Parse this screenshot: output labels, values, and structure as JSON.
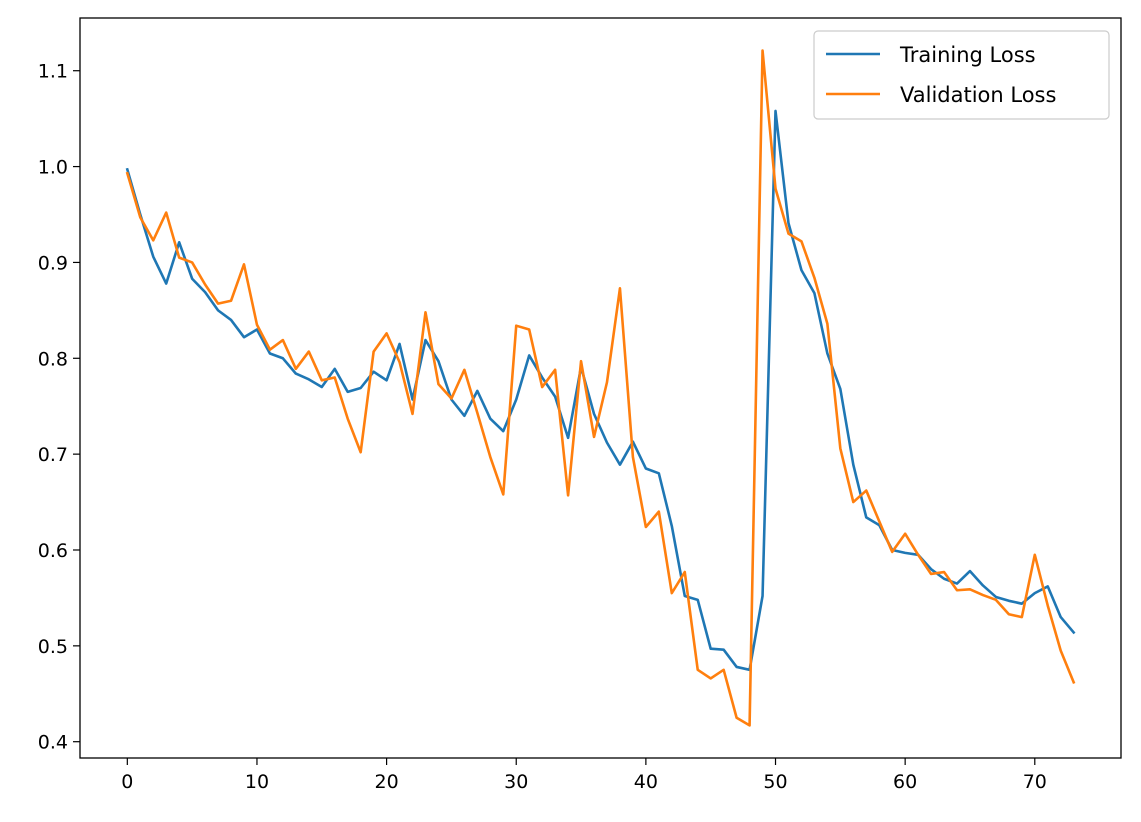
{
  "chart_data": {
    "type": "line",
    "title": "",
    "xlabel": "",
    "ylabel": "",
    "xlim": [
      -3.65,
      76.65
    ],
    "ylim": [
      0.383,
      1.155
    ],
    "xticks": [
      0,
      10,
      20,
      30,
      40,
      50,
      60,
      70
    ],
    "yticks": [
      0.4,
      0.5,
      0.6,
      0.7,
      0.8,
      0.9,
      1.0,
      1.1
    ],
    "grid": false,
    "legend_position": "top-right",
    "series": [
      {
        "name": "Training Loss",
        "color": "#1f77b4",
        "x": [
          0,
          1,
          2,
          3,
          4,
          5,
          6,
          7,
          8,
          9,
          10,
          11,
          12,
          13,
          14,
          15,
          16,
          17,
          18,
          19,
          20,
          21,
          22,
          23,
          24,
          25,
          26,
          27,
          28,
          29,
          30,
          31,
          32,
          33,
          34,
          35,
          36,
          37,
          38,
          39,
          40,
          41,
          42,
          43,
          44,
          45,
          46,
          47,
          48,
          49,
          50,
          51,
          52,
          53,
          54,
          55,
          56,
          57,
          58,
          59,
          60,
          61,
          62,
          63,
          64,
          65,
          66,
          67,
          68,
          69,
          70,
          71,
          72,
          73
        ],
        "values": [
          0.997,
          0.95,
          0.906,
          0.878,
          0.921,
          0.883,
          0.869,
          0.85,
          0.84,
          0.822,
          0.83,
          0.805,
          0.8,
          0.784,
          0.778,
          0.77,
          0.789,
          0.765,
          0.769,
          0.786,
          0.777,
          0.815,
          0.757,
          0.819,
          0.797,
          0.757,
          0.74,
          0.766,
          0.737,
          0.724,
          0.757,
          0.803,
          0.78,
          0.76,
          0.717,
          0.791,
          0.742,
          0.712,
          0.689,
          0.713,
          0.685,
          0.68,
          0.625,
          0.552,
          0.548,
          0.497,
          0.496,
          0.478,
          0.475,
          0.552,
          1.058,
          0.941,
          0.892,
          0.868,
          0.805,
          0.768,
          0.689,
          0.634,
          0.626,
          0.6,
          0.597,
          0.595,
          0.58,
          0.57,
          0.565,
          0.578,
          0.563,
          0.551,
          0.547,
          0.544,
          0.555,
          0.562,
          0.53,
          0.514
        ]
      },
      {
        "name": "Validation Loss",
        "color": "#ff7f0e",
        "x": [
          0,
          1,
          2,
          3,
          4,
          5,
          6,
          7,
          8,
          9,
          10,
          11,
          12,
          13,
          14,
          15,
          16,
          17,
          18,
          19,
          20,
          21,
          22,
          23,
          24,
          25,
          26,
          27,
          28,
          29,
          30,
          31,
          32,
          33,
          34,
          35,
          36,
          37,
          38,
          39,
          40,
          41,
          42,
          43,
          44,
          45,
          46,
          47,
          48,
          49,
          50,
          51,
          52,
          53,
          54,
          55,
          56,
          57,
          58,
          59,
          60,
          61,
          62,
          63,
          64,
          65,
          66,
          67,
          68,
          69,
          70,
          71,
          72,
          73
        ],
        "values": [
          0.993,
          0.947,
          0.923,
          0.952,
          0.905,
          0.9,
          0.877,
          0.857,
          0.86,
          0.898,
          0.835,
          0.809,
          0.819,
          0.789,
          0.807,
          0.777,
          0.78,
          0.737,
          0.702,
          0.807,
          0.826,
          0.796,
          0.742,
          0.848,
          0.773,
          0.758,
          0.788,
          0.743,
          0.697,
          0.658,
          0.834,
          0.83,
          0.77,
          0.788,
          0.657,
          0.797,
          0.718,
          0.775,
          0.873,
          0.697,
          0.624,
          0.64,
          0.555,
          0.577,
          0.475,
          0.466,
          0.475,
          0.425,
          0.417,
          1.121,
          0.977,
          0.93,
          0.922,
          0.884,
          0.836,
          0.706,
          0.65,
          0.662,
          0.63,
          0.598,
          0.617,
          0.595,
          0.575,
          0.577,
          0.558,
          0.559,
          0.553,
          0.548,
          0.533,
          0.53,
          0.595,
          0.542,
          0.495,
          0.462
        ]
      }
    ]
  }
}
